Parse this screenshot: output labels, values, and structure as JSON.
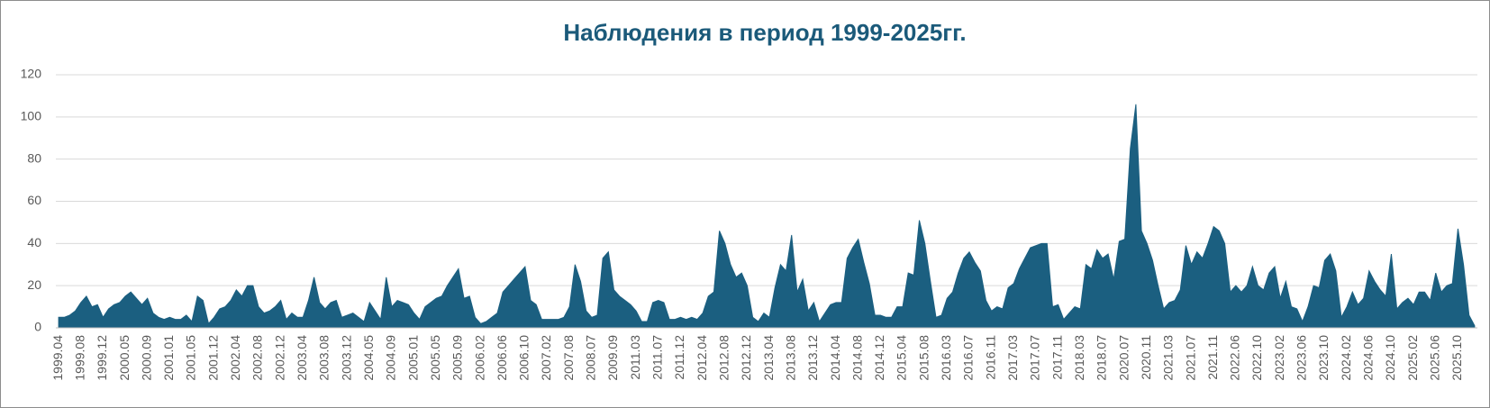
{
  "chart_data": {
    "type": "area",
    "title": "Наблюдения в период 1999-2025гг.",
    "categories": [
      "1999.04",
      null,
      null,
      null,
      "1999.08",
      null,
      null,
      null,
      "1999.12",
      null,
      null,
      null,
      "2000.05",
      null,
      null,
      null,
      "2000.09",
      null,
      null,
      null,
      "2001.01",
      null,
      null,
      null,
      "2001.05",
      null,
      null,
      null,
      "2001.12",
      null,
      null,
      null,
      "2002.04",
      null,
      null,
      null,
      "2002.08",
      null,
      null,
      null,
      "2002.12",
      null,
      null,
      null,
      "2003.04",
      null,
      null,
      null,
      "2003.08",
      null,
      null,
      null,
      "2003.12",
      null,
      null,
      null,
      "2004.05",
      null,
      null,
      null,
      "2004.09",
      null,
      null,
      null,
      "2005.01",
      null,
      null,
      null,
      "2005.05",
      null,
      null,
      null,
      "2005.09",
      null,
      null,
      null,
      "2006.02",
      null,
      null,
      null,
      "2006.06",
      null,
      null,
      null,
      "2006.10",
      null,
      null,
      null,
      "2007.02",
      null,
      null,
      null,
      "2007.08",
      null,
      null,
      null,
      "2008.07",
      null,
      null,
      null,
      "2009.09",
      null,
      null,
      null,
      "2011.03",
      null,
      null,
      null,
      "2011.07",
      null,
      null,
      null,
      "2011.12",
      null,
      null,
      null,
      "2012.04",
      null,
      null,
      null,
      "2012.08",
      null,
      null,
      null,
      "2012.12",
      null,
      null,
      null,
      "2013.04",
      null,
      null,
      null,
      "2013.08",
      null,
      null,
      null,
      "2013.12",
      null,
      null,
      null,
      "2014.04",
      null,
      null,
      null,
      "2014.08",
      null,
      null,
      null,
      "2014.12",
      null,
      null,
      null,
      "2015.04",
      null,
      null,
      null,
      "2015.08",
      null,
      null,
      null,
      "2016.03",
      null,
      null,
      null,
      "2016.07",
      null,
      null,
      null,
      "2016.11",
      null,
      null,
      null,
      "2017.03",
      null,
      null,
      null,
      "2017.07",
      null,
      null,
      null,
      "2017.11",
      null,
      null,
      null,
      "2018.03",
      null,
      null,
      null,
      "2018.07",
      null,
      null,
      null,
      "2020.07",
      null,
      null,
      null,
      "2020.11",
      null,
      null,
      null,
      "2021.03",
      null,
      null,
      null,
      "2021.07",
      null,
      null,
      null,
      "2021.11",
      null,
      null,
      null,
      "2022.06",
      null,
      null,
      null,
      "2022.10",
      null,
      null,
      null,
      "2023.02",
      null,
      null,
      null,
      "2023.06",
      null,
      null,
      null,
      "2023.10",
      null,
      null,
      null,
      "2024.02",
      null,
      null,
      null,
      "2024.06",
      null,
      null,
      null,
      "2024.10",
      null,
      null,
      null,
      "2025.02",
      null,
      null,
      null,
      "2025.06",
      null,
      null,
      null,
      "2025.10",
      null,
      null,
      null
    ],
    "values": [
      5,
      5,
      6,
      8,
      12,
      15,
      10,
      11,
      5,
      9,
      11,
      12,
      15,
      17,
      14,
      11,
      14,
      7,
      5,
      4,
      5,
      4,
      4,
      6,
      3,
      15,
      13,
      2,
      5,
      9,
      10,
      13,
      18,
      15,
      20,
      20,
      10,
      7,
      8,
      10,
      13,
      4,
      7,
      5,
      5,
      13,
      24,
      12,
      9,
      12,
      13,
      5,
      6,
      7,
      5,
      3,
      12,
      8,
      4,
      24,
      10,
      13,
      12,
      11,
      7,
      4,
      10,
      12,
      14,
      15,
      20,
      24,
      28,
      14,
      15,
      5,
      2,
      3,
      5,
      7,
      17,
      20,
      23,
      26,
      29,
      13,
      11,
      4,
      4,
      4,
      4,
      5,
      10,
      30,
      22,
      8,
      5,
      6,
      33,
      36,
      18,
      15,
      13,
      11,
      8,
      3,
      3,
      12,
      13,
      12,
      4,
      4,
      5,
      4,
      5,
      4,
      7,
      15,
      17,
      46,
      40,
      30,
      24,
      26,
      20,
      5,
      3,
      7,
      5,
      19,
      30,
      27,
      44,
      17,
      23,
      8,
      12,
      3,
      7,
      11,
      12,
      12,
      33,
      38,
      42,
      31,
      21,
      6,
      6,
      5,
      5,
      10,
      10,
      26,
      25,
      51,
      40,
      22,
      5,
      6,
      14,
      17,
      26,
      33,
      36,
      31,
      27,
      13,
      8,
      10,
      9,
      19,
      21,
      28,
      33,
      38,
      39,
      40,
      40,
      10,
      11,
      4,
      7,
      10,
      9,
      30,
      28,
      37,
      33,
      35,
      23,
      41,
      42,
      85,
      106,
      46,
      40,
      32,
      20,
      9,
      12,
      13,
      18,
      39,
      30,
      36,
      33,
      40,
      48,
      46,
      40,
      17,
      20,
      17,
      20,
      29,
      20,
      18,
      26,
      29,
      14,
      22,
      10,
      9,
      3,
      10,
      20,
      19,
      32,
      35,
      27,
      5,
      10,
      17,
      11,
      14,
      27,
      22,
      18,
      15,
      35,
      9,
      12,
      14,
      11,
      17,
      17,
      13,
      26,
      17,
      20,
      21,
      47,
      30,
      6,
      1
    ],
    "color": "#1b5f80",
    "ylim": [
      0,
      120
    ],
    "yticks": [
      0,
      20,
      40,
      60,
      80,
      100,
      120
    ],
    "grid": true
  }
}
